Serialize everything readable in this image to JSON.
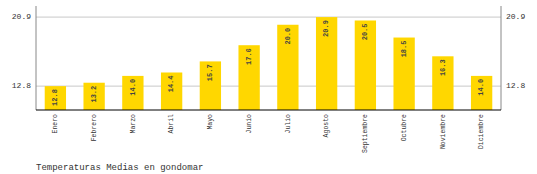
{
  "chart_data": {
    "type": "bar",
    "title": "Temperaturas Medias en gondomar",
    "categories": [
      "Enero",
      "Febrero",
      "Marzo",
      "Abril",
      "Mayo",
      "Junio",
      "Julio",
      "Agosto",
      "Septiembre",
      "Octubre",
      "Noviembre",
      "Diciembre"
    ],
    "values": [
      12.8,
      13.2,
      14.0,
      14.4,
      15.7,
      17.6,
      20.0,
      20.9,
      20.5,
      18.5,
      16.3,
      14.0
    ],
    "value_labels": [
      "12.8",
      "13.2",
      "14.0",
      "14.4",
      "15.7",
      "17.6",
      "20.0",
      "20.9",
      "20.5",
      "18.5",
      "16.3",
      "14.0"
    ],
    "color": "#FFD700",
    "ylim": [
      10.0,
      22.2
    ],
    "yticks": [
      12.8,
      20.9
    ],
    "grid": true,
    "data_labels": true
  }
}
